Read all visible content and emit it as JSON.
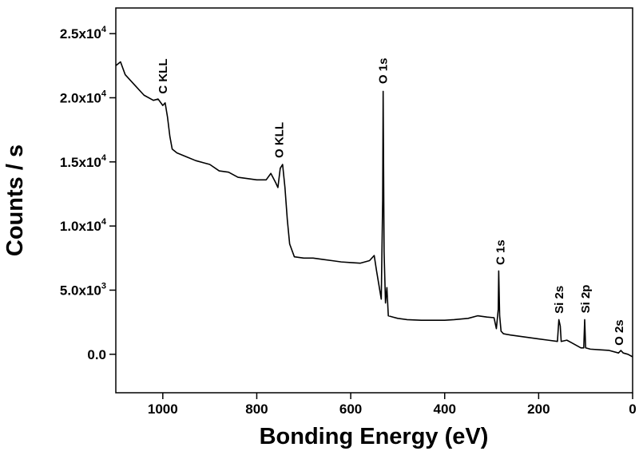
{
  "chart_data": {
    "type": "line",
    "x_label": "Bonding Energy (eV)",
    "y_label": "Counts / s",
    "xlim": [
      1100,
      0
    ],
    "ylim": [
      -3000,
      27000
    ],
    "xticks": [
      1000,
      800,
      600,
      400,
      200,
      0
    ],
    "yticks": [
      {
        "value": 0,
        "label": "0.0"
      },
      {
        "value": 5000,
        "label": "5.0x10",
        "exp": "3"
      },
      {
        "value": 10000,
        "label": "1.0x10",
        "exp": "4"
      },
      {
        "value": 15000,
        "label": "1.5x10",
        "exp": "4"
      },
      {
        "value": 20000,
        "label": "2.0x10",
        "exp": "4"
      },
      {
        "value": 25000,
        "label": "2.5x10",
        "exp": "4"
      }
    ],
    "color": "#000000",
    "x": [
      1100,
      1090,
      1080,
      1060,
      1040,
      1020,
      1010,
      1000,
      995,
      990,
      985,
      980,
      970,
      950,
      930,
      900,
      880,
      860,
      840,
      820,
      800,
      780,
      770,
      760,
      755,
      750,
      745,
      740,
      735,
      730,
      720,
      700,
      680,
      660,
      640,
      620,
      600,
      580,
      560,
      550,
      545,
      540,
      535,
      532,
      531,
      529,
      526,
      523,
      520,
      510,
      500,
      480,
      450,
      420,
      400,
      380,
      350,
      330,
      310,
      295,
      290,
      286,
      285,
      283,
      280,
      275,
      260,
      240,
      220,
      200,
      180,
      160,
      157,
      154,
      152,
      140,
      130,
      120,
      110,
      104,
      102,
      100,
      90,
      70,
      50,
      30,
      25,
      20,
      10,
      0
    ],
    "values": [
      22500,
      22800,
      21800,
      21000,
      20200,
      19800,
      19900,
      19400,
      19600,
      18500,
      17000,
      16000,
      15700,
      15400,
      15100,
      14800,
      14300,
      14200,
      13800,
      13700,
      13600,
      13600,
      14100,
      13400,
      13000,
      14500,
      14800,
      13000,
      10500,
      8600,
      7600,
      7500,
      7500,
      7400,
      7300,
      7200,
      7150,
      7100,
      7300,
      7700,
      6500,
      5400,
      4300,
      12000,
      20500,
      8000,
      4000,
      5200,
      3000,
      2900,
      2800,
      2700,
      2650,
      2650,
      2650,
      2700,
      2800,
      3000,
      2900,
      2850,
      2000,
      3500,
      6500,
      3000,
      1800,
      1600,
      1500,
      1400,
      1300,
      1200,
      1100,
      1000,
      2700,
      2200,
      1000,
      1100,
      900,
      700,
      500,
      500,
      2700,
      500,
      400,
      350,
      300,
      100,
      300,
      100,
      0,
      -200
    ],
    "annotations": [
      {
        "text": "C KLL",
        "x": 1000,
        "y": 20300
      },
      {
        "text": "O KLL",
        "x": 752,
        "y": 15300
      },
      {
        "text": "O 1s",
        "x": 531,
        "y": 21080
      },
      {
        "text": "C 1s",
        "x": 281,
        "y": 6960
      },
      {
        "text": "Si 2s",
        "x": 156,
        "y": 3170
      },
      {
        "text": "Si 2p",
        "x": 100,
        "y": 3200
      },
      {
        "text": "O 2s",
        "x": 29,
        "y": 680
      }
    ]
  }
}
